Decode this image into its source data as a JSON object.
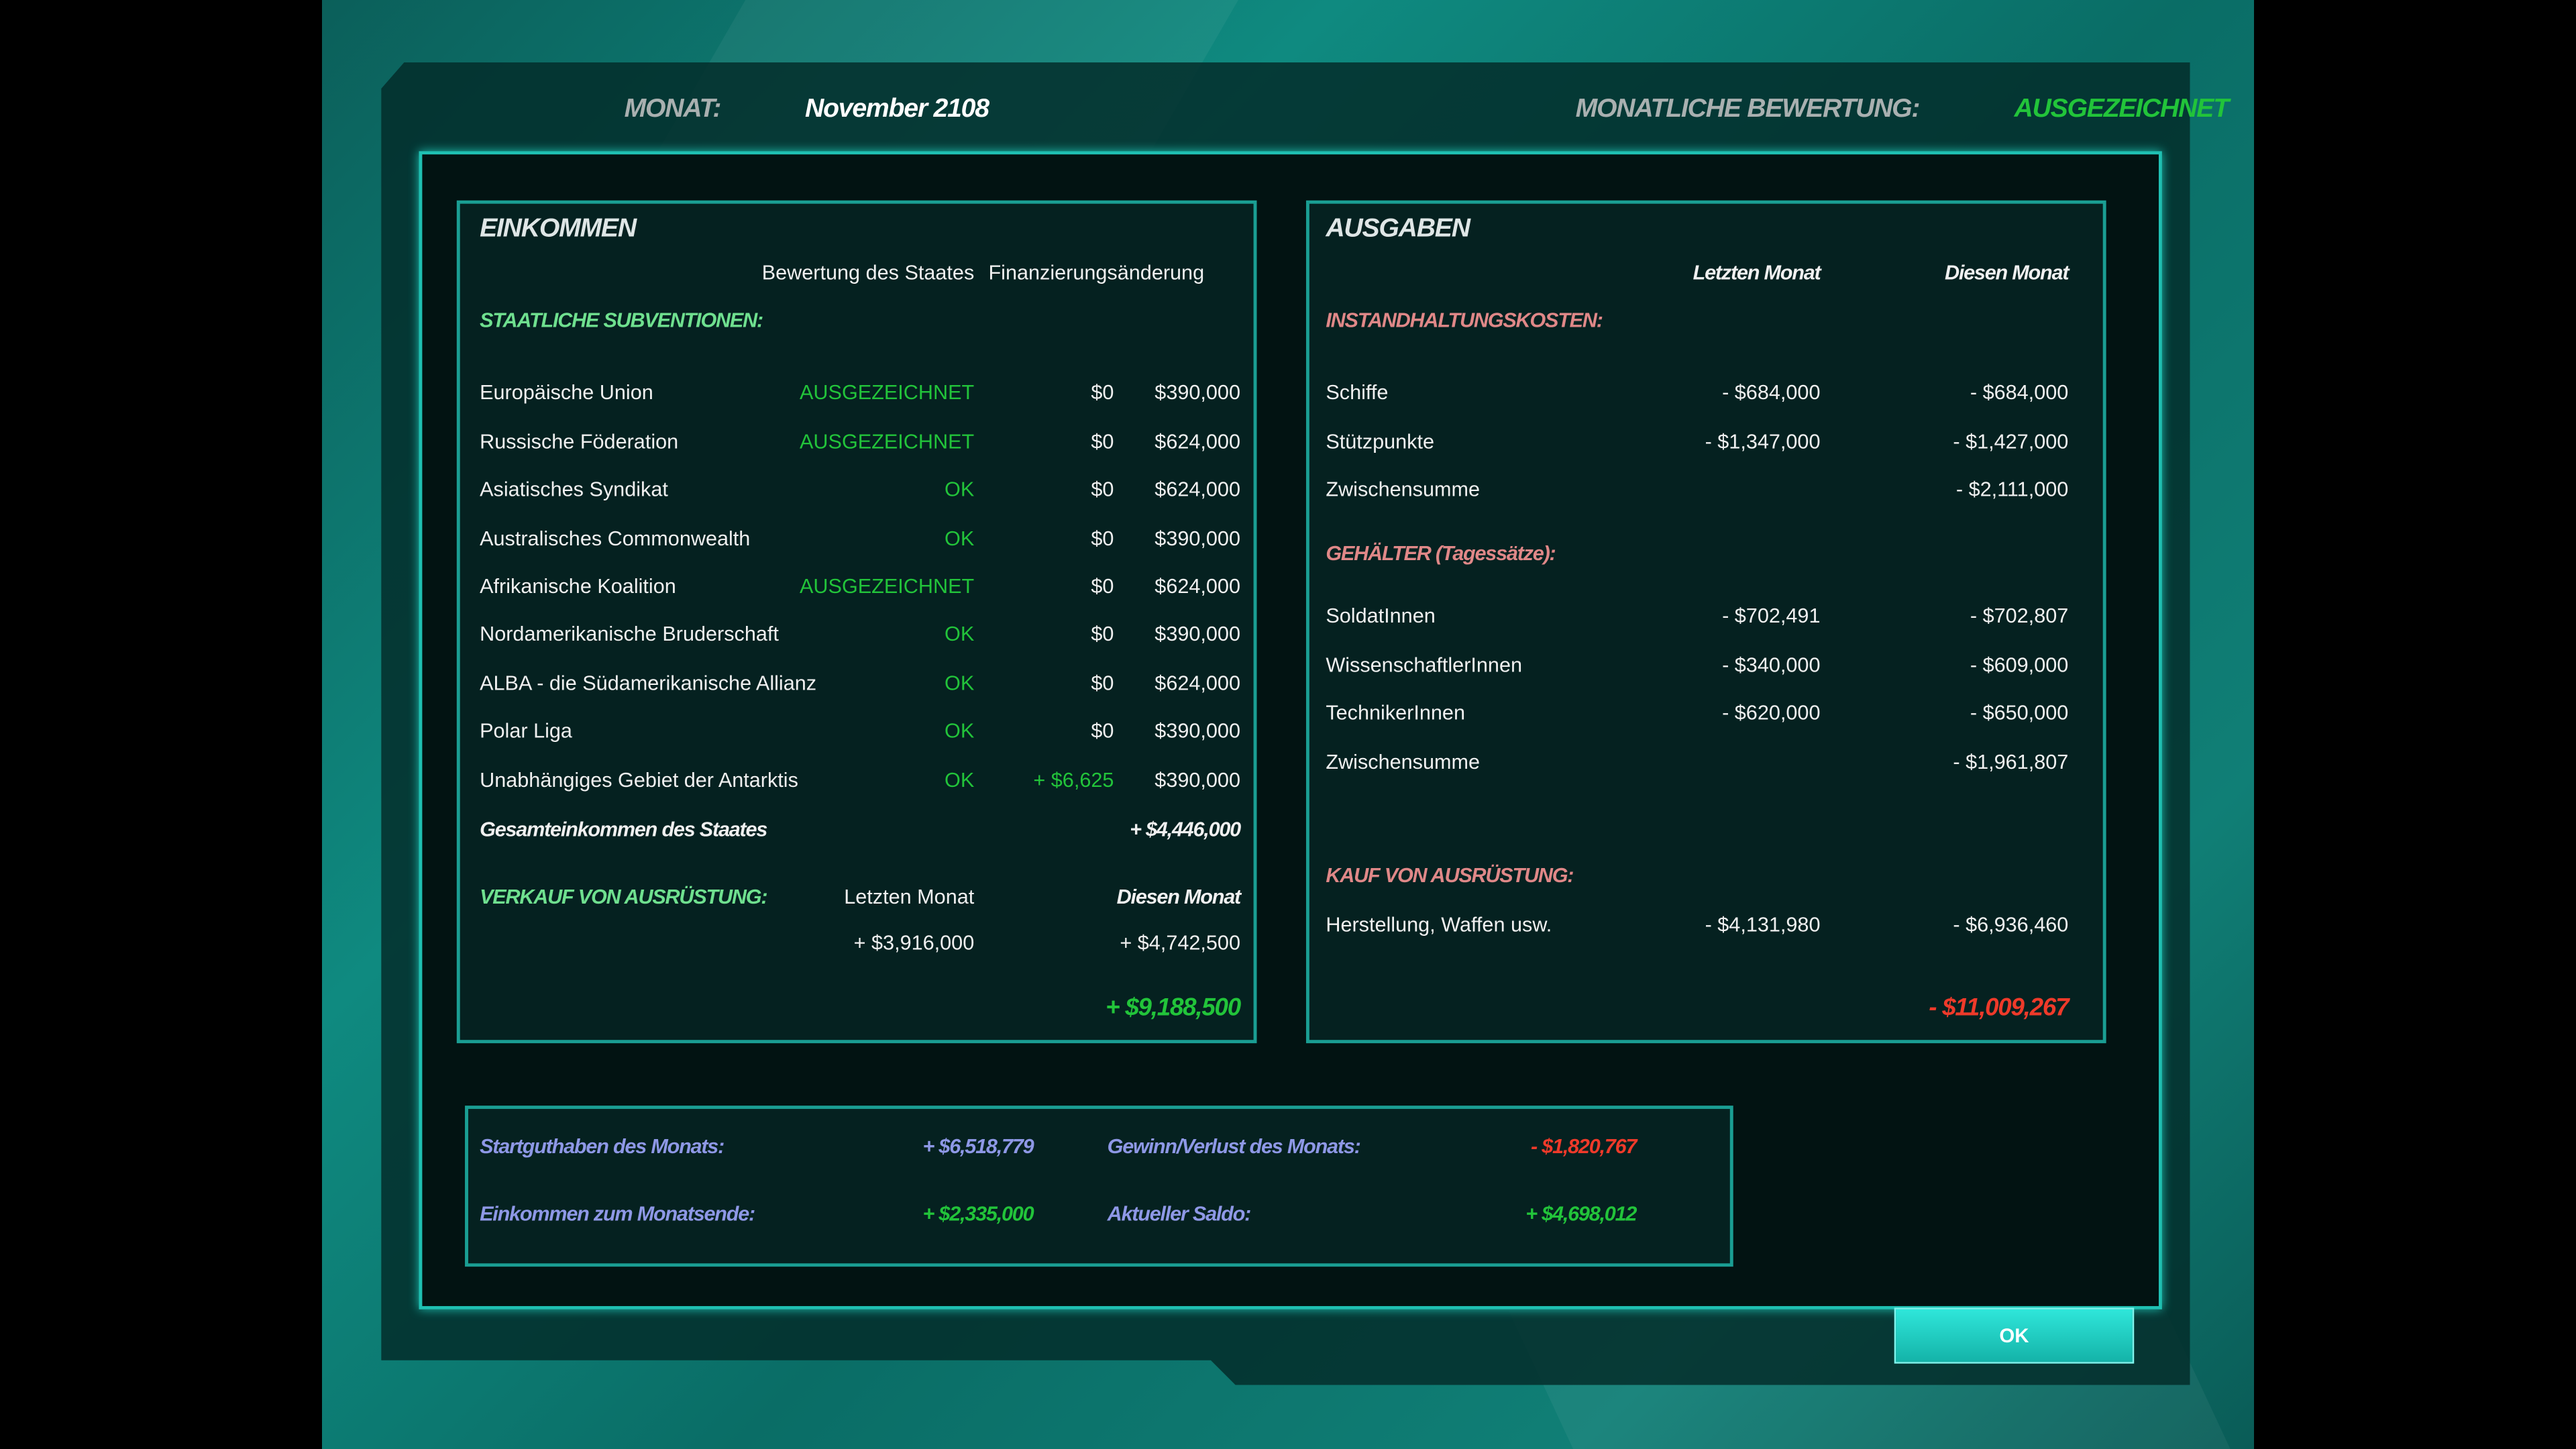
{
  "header": {
    "month_label": "MONAT:",
    "month_value": "November 2108",
    "rating_label": "MONATLICHE BEWERTUNG:",
    "rating_value": "AUSGEZEICHNET"
  },
  "income": {
    "title": "EINKOMMEN",
    "col_rating": "Bewertung des Staates",
    "col_change": "Finanzierungsänderung",
    "subsidies_heading": "STAATLICHE SUBVENTIONEN:",
    "rows": [
      {
        "name": "Europäische Union",
        "rating": "AUSGEZEICHNET",
        "change": "$0",
        "amount": "$390,000"
      },
      {
        "name": "Russische Föderation",
        "rating": "AUSGEZEICHNET",
        "change": "$0",
        "amount": "$624,000"
      },
      {
        "name": "Asiatisches Syndikat",
        "rating": "OK",
        "change": "$0",
        "amount": "$624,000"
      },
      {
        "name": "Australisches Commonwealth",
        "rating": "OK",
        "change": "$0",
        "amount": "$390,000"
      },
      {
        "name": "Afrikanische Koalition",
        "rating": "AUSGEZEICHNET",
        "change": "$0",
        "amount": "$624,000"
      },
      {
        "name": "Nordamerikanische Bruderschaft",
        "rating": "OK",
        "change": "$0",
        "amount": "$390,000"
      },
      {
        "name": "ALBA - die Südamerikanische Allianz",
        "rating": "OK",
        "change": "$0",
        "amount": "$624,000"
      },
      {
        "name": "Polar Liga",
        "rating": "OK",
        "change": "$0",
        "amount": "$390,000"
      },
      {
        "name": "Unabhängiges Gebiet der Antarktis",
        "rating": "OK",
        "change": "+ $6,625",
        "amount": "$390,000"
      }
    ],
    "total_label": "Gesamteinkommen des Staates",
    "total_value": "+ $4,446,000",
    "sales_heading": "VERKAUF VON AUSRÜSTUNG:",
    "sales_col_last": "Letzten Monat",
    "sales_col_this": "Diesen Monat",
    "sales_last": "+ $3,916,000",
    "sales_this": "+ $4,742,500",
    "grand_total": "+ $9,188,500"
  },
  "expenses": {
    "title": "AUSGABEN",
    "col_last": "Letzten Monat",
    "col_this": "Diesen Monat",
    "maintenance_heading": "INSTANDHALTUNGSKOSTEN:",
    "maintenance": [
      {
        "name": "Schiffe",
        "last": "- $684,000",
        "this": "- $684,000"
      },
      {
        "name": "Stützpunkte",
        "last": "- $1,347,000",
        "this": "- $1,427,000"
      },
      {
        "name": "Zwischensumme",
        "last": "",
        "this": "- $2,111,000"
      }
    ],
    "salaries_heading": "GEHÄLTER (Tagessätze):",
    "salaries": [
      {
        "name": "SoldatInnen",
        "last": "- $702,491",
        "this": "- $702,807"
      },
      {
        "name": "WissenschaftlerInnen",
        "last": "- $340,000",
        "this": "- $609,000"
      },
      {
        "name": "TechnikerInnen",
        "last": "- $620,000",
        "this": "- $650,000"
      },
      {
        "name": "Zwischensumme",
        "last": "",
        "this": "- $1,961,807"
      }
    ],
    "purchase_heading": "KAUF VON AUSRÜSTUNG:",
    "purchase": {
      "name": "Herstellung, Waffen usw.",
      "last": "- $4,131,980",
      "this": "- $6,936,460"
    },
    "grand_total": "- $11,009,267"
  },
  "summary": {
    "start_label": "Startguthaben des Monats:",
    "start_value": "+ $6,518,779",
    "profit_label": "Gewinn/Verlust des Monats:",
    "profit_value": "- $1,820,767",
    "endincome_label": "Einkommen zum Monatsende:",
    "endincome_value": "+ $2,335,000",
    "balance_label": "Aktueller Saldo:",
    "balance_value": "+ $4,698,012"
  },
  "ok_label": "OK",
  "colors": {
    "accent": "#1fc0b2",
    "positive": "#22c43a",
    "negative": "#ef3a2a",
    "label_blue": "#8e98e6",
    "heading_pink": "#e08888"
  }
}
